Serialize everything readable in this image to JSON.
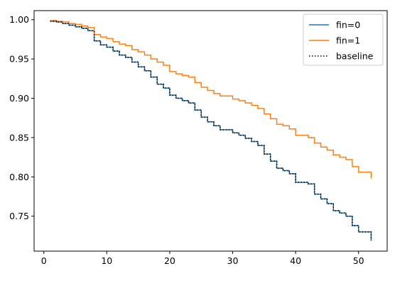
{
  "chart_data": {
    "type": "line",
    "step": "post",
    "xlim": [
      -1.55,
      54.55
    ],
    "ylim": [
      0.7055,
      1.0115
    ],
    "x_ticks": [
      0,
      10,
      20,
      30,
      40,
      50
    ],
    "x_tick_labels": [
      "0",
      "10",
      "20",
      "30",
      "40",
      "50"
    ],
    "y_ticks": [
      0.75,
      0.8,
      0.85,
      0.9,
      0.95,
      1.0
    ],
    "y_tick_labels": [
      "0.75",
      "0.80",
      "0.85",
      "0.90",
      "0.95",
      "1.00"
    ],
    "grid": false,
    "legend_position": "upper right",
    "series": [
      {
        "name": "fin=0",
        "color": "#1f77b4",
        "style": "solid",
        "x": [
          1,
          2,
          3,
          4,
          5,
          6,
          7,
          8,
          9,
          10,
          11,
          12,
          13,
          14,
          15,
          16,
          17,
          18,
          19,
          20,
          21,
          22,
          23,
          24,
          25,
          26,
          27,
          28,
          29,
          30,
          31,
          32,
          33,
          34,
          35,
          36,
          37,
          38,
          39,
          40,
          41,
          42,
          43,
          44,
          45,
          46,
          47,
          48,
          49,
          50,
          51,
          52
        ],
        "y": [
          0.998,
          0.997,
          0.995,
          0.993,
          0.991,
          0.989,
          0.986,
          0.973,
          0.968,
          0.965,
          0.96,
          0.955,
          0.952,
          0.946,
          0.94,
          0.935,
          0.927,
          0.918,
          0.913,
          0.904,
          0.9,
          0.897,
          0.894,
          0.885,
          0.876,
          0.87,
          0.865,
          0.86,
          0.86,
          0.856,
          0.853,
          0.849,
          0.845,
          0.84,
          0.829,
          0.82,
          0.811,
          0.808,
          0.804,
          0.793,
          0.793,
          0.791,
          0.778,
          0.772,
          0.766,
          0.757,
          0.754,
          0.75,
          0.738,
          0.73,
          0.73,
          0.719
        ]
      },
      {
        "name": "fin=1",
        "color": "#ff7f0e",
        "style": "solid",
        "x": [
          1,
          2,
          3,
          4,
          5,
          6,
          7,
          8,
          9,
          10,
          11,
          12,
          13,
          14,
          15,
          16,
          17,
          18,
          19,
          20,
          21,
          22,
          23,
          24,
          25,
          26,
          27,
          28,
          29,
          30,
          31,
          32,
          33,
          34,
          35,
          36,
          37,
          38,
          39,
          40,
          41,
          42,
          43,
          44,
          45,
          46,
          47,
          48,
          49,
          50,
          51,
          52
        ],
        "y": [
          0.999,
          0.998,
          0.997,
          0.995,
          0.994,
          0.992,
          0.99,
          0.981,
          0.978,
          0.976,
          0.972,
          0.969,
          0.967,
          0.962,
          0.959,
          0.955,
          0.95,
          0.946,
          0.942,
          0.934,
          0.931,
          0.929,
          0.927,
          0.92,
          0.914,
          0.91,
          0.906,
          0.903,
          0.903,
          0.899,
          0.897,
          0.894,
          0.891,
          0.887,
          0.88,
          0.874,
          0.867,
          0.865,
          0.861,
          0.853,
          0.853,
          0.85,
          0.843,
          0.838,
          0.834,
          0.828,
          0.825,
          0.822,
          0.813,
          0.806,
          0.806,
          0.798
        ]
      },
      {
        "name": "baseline",
        "color": "#000000",
        "style": "dotted",
        "x": [
          1,
          2,
          3,
          4,
          5,
          6,
          7,
          8,
          9,
          10,
          11,
          12,
          13,
          14,
          15,
          16,
          17,
          18,
          19,
          20,
          21,
          22,
          23,
          24,
          25,
          26,
          27,
          28,
          29,
          30,
          31,
          32,
          33,
          34,
          35,
          36,
          37,
          38,
          39,
          40,
          41,
          42,
          43,
          44,
          45,
          46,
          47,
          48,
          49,
          50,
          51,
          52
        ],
        "y": [
          0.998,
          0.997,
          0.995,
          0.993,
          0.991,
          0.989,
          0.986,
          0.973,
          0.968,
          0.965,
          0.96,
          0.955,
          0.952,
          0.946,
          0.94,
          0.935,
          0.927,
          0.918,
          0.913,
          0.904,
          0.9,
          0.897,
          0.894,
          0.885,
          0.876,
          0.87,
          0.865,
          0.86,
          0.86,
          0.856,
          0.853,
          0.849,
          0.845,
          0.84,
          0.829,
          0.82,
          0.811,
          0.808,
          0.804,
          0.793,
          0.793,
          0.791,
          0.778,
          0.772,
          0.766,
          0.757,
          0.754,
          0.75,
          0.738,
          0.73,
          0.73,
          0.719
        ]
      }
    ]
  }
}
